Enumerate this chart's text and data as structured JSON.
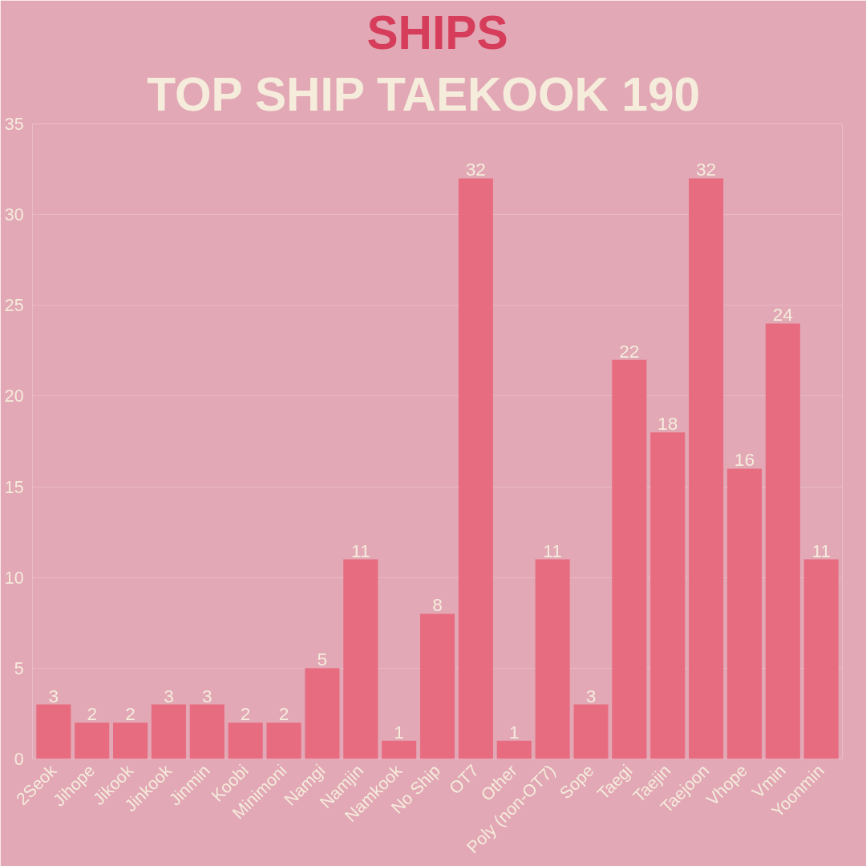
{
  "chart_data": {
    "type": "bar",
    "title": "SHIPS",
    "subtitle": "TOP SHIP  TAEKOOK  190",
    "categories": [
      "2Seok",
      "Jihope",
      "Jikook",
      "Jinkook",
      "Jinmin",
      "Koobi",
      "Minimoni",
      "Namgi",
      "Namjin",
      "Namkook",
      "No Ship",
      "OT7",
      "Other",
      "Poly (non-OT7)",
      "Sope",
      "Taegi",
      "Taejin",
      "Taejoon",
      "Vhope",
      "Vmin",
      "Yoonmin"
    ],
    "values": [
      3,
      2,
      2,
      3,
      3,
      2,
      2,
      5,
      11,
      1,
      8,
      32,
      1,
      11,
      3,
      22,
      18,
      32,
      16,
      24,
      11
    ],
    "color": "#e76c80",
    "ylim": [
      0,
      35
    ],
    "yticks": [
      0,
      5,
      10,
      15,
      20,
      25,
      30,
      35
    ],
    "grid": "y",
    "data_labels": true
  }
}
